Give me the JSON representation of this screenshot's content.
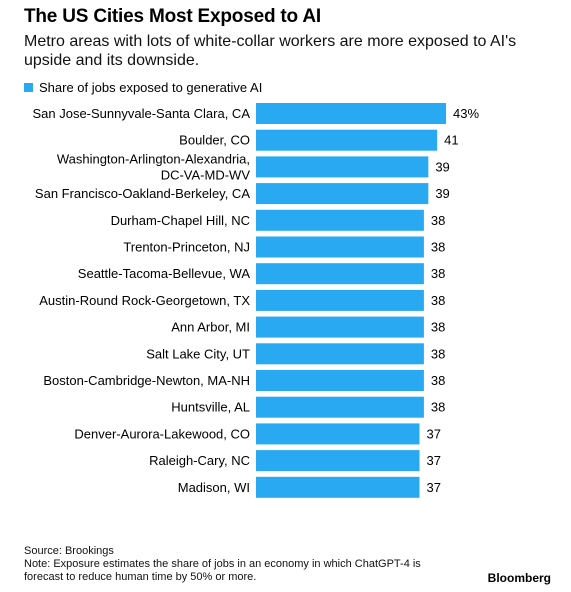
{
  "header": {
    "title": "The US Cities Most Exposed to AI",
    "subtitle": "Metro areas with lots of white-collar workers are more exposed to AI's upside and its downside."
  },
  "footer": {
    "source": "Source: Brookings",
    "note": "Note: Exposure estimates the share of jobs in an economy in which ChatGPT-4 is forecast to reduce human time by 50% or more.",
    "brand": "Bloomberg"
  },
  "colors": {
    "bar": "#29a9f2"
  },
  "chart_data": {
    "type": "bar",
    "orientation": "horizontal",
    "series": [
      {
        "name": "Share of jobs exposed to generative AI",
        "values": [
          43,
          41,
          39,
          39,
          38,
          38,
          38,
          38,
          38,
          38,
          38,
          38,
          37,
          37,
          37
        ]
      }
    ],
    "categories": [
      [
        "San Jose-Sunnyvale-Santa Clara, CA"
      ],
      [
        "Boulder, CO"
      ],
      [
        "Washington-Arlington-Alexandria,",
        "DC-VA-MD-WV"
      ],
      [
        "San Francisco-Oakland-Berkeley, CA"
      ],
      [
        "Durham-Chapel Hill, NC"
      ],
      [
        "Trenton-Princeton, NJ"
      ],
      [
        "Seattle-Tacoma-Bellevue, WA"
      ],
      [
        "Austin-Round Rock-Georgetown, TX"
      ],
      [
        "Ann Arbor, MI"
      ],
      [
        "Salt Lake City, UT"
      ],
      [
        "Boston-Cambridge-Newton, MA-NH"
      ],
      [
        "Huntsville, AL"
      ],
      [
        "Denver-Aurora-Lakewood, CO"
      ],
      [
        "Raleigh-Cary, NC"
      ],
      [
        "Madison, WI"
      ]
    ],
    "value_labels": [
      "43%",
      "41",
      "39",
      "39",
      "38",
      "38",
      "38",
      "38",
      "38",
      "38",
      "38",
      "38",
      "37",
      "37",
      "37"
    ],
    "legend": "top-left",
    "grid": false
  }
}
